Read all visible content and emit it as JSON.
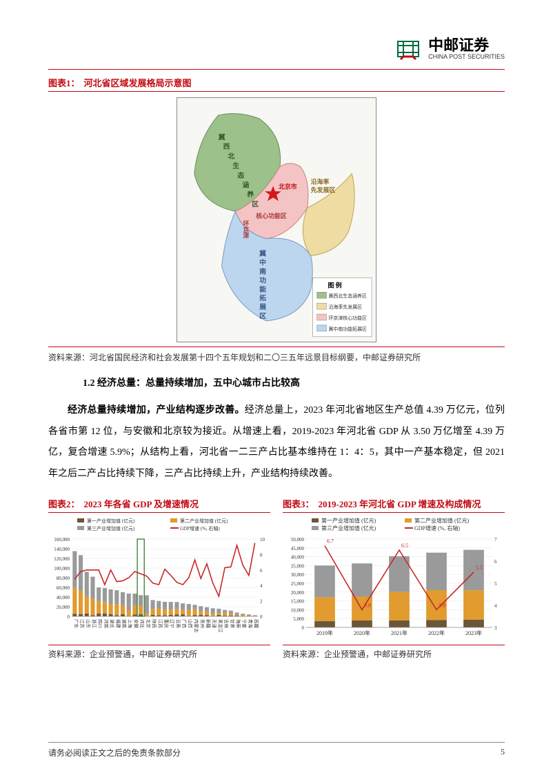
{
  "logo": {
    "cn": "中邮证券",
    "en": "CHINA POST SECURITIES"
  },
  "figure1": {
    "label": "图表1：",
    "title": "河北省区域发展格局示意图",
    "map": {
      "beijing_label": "北京市",
      "zones": [
        {
          "name": "冀西北生态涵养区",
          "fill": "#9dc18b",
          "label": "冀\n西\n北\n生\n态\n涵\n养\n区"
        },
        {
          "name": "沿海率先发展区",
          "fill": "#eedca3",
          "label": "沿海率先发展区"
        },
        {
          "name": "环京津核心功能区",
          "fill": "#f4c4c4",
          "label": "环京津核心功能区"
        },
        {
          "name": "冀中南功能拓展区",
          "fill": "#bcd6f0",
          "label": "冀中南功能拓展区"
        }
      ],
      "legend_title": "图    例",
      "legend_items": [
        {
          "color": "#9dc18b",
          "text": "冀西北生态涵养区"
        },
        {
          "color": "#eedca3",
          "text": "沿海率先发展区"
        },
        {
          "color": "#f4c4c4",
          "text": "环京津核心功能区"
        },
        {
          "color": "#bcd6f0",
          "text": "冀中南功能拓展区"
        }
      ]
    },
    "source": "资料来源：河北省国民经济和社会发展第十四个五年规划和二〇三五年远景目标纲要，中邮证券研究所"
  },
  "section_1_2": {
    "heading": "1.2 经济总量：总量持续增加，五中心城市占比较高",
    "para": "经济总量持续增加，产业结构逐步改善。经济总量上，2023 年河北省地区生产总值 4.39 万亿元，位列各省市第 12 位，与安徽和北京较为接近。从增速上看，2019-2023 年河北省 GDP 从 3.50 万亿增至 4.39 万亿，复合增速 5.9%；从结构上看，河北省一二三产占比基本维持在 1：4：5，其中一产基本稳定，但 2021 年之后二产占比持续下降，三产占比持续上升，产业结构持续改善。",
    "bold_lead": "经济总量持续增加，产业结构逐步改善。"
  },
  "chart2": {
    "label": "图表2：",
    "title": "2023 年各省 GDP 及增速情况",
    "type": "stacked-bar-line",
    "legend": [
      {
        "name": "第一产业增加值 (亿元)",
        "color": "#6b5638",
        "shape": "bar"
      },
      {
        "name": "第二产业增加值 (亿元)",
        "color": "#e19b2e",
        "shape": "bar"
      },
      {
        "name": "第三产业增加值 (亿元)",
        "color": "#9a9a9a",
        "shape": "bar"
      },
      {
        "name": "GDP增速 (%, 右轴)",
        "color": "#c62828",
        "shape": "line"
      }
    ],
    "y_left": {
      "min": 0,
      "max": 160000,
      "step": 20000
    },
    "y_right": {
      "min": 0,
      "max": 10,
      "step": 2
    },
    "label_fontsize": 7,
    "categories": [
      "广东",
      "江苏",
      "山东",
      "浙江",
      "四川",
      "河南",
      "湖北",
      "福建",
      "湖南",
      "上海",
      "安徽",
      "河北",
      "北京",
      "陕西",
      "江西",
      "重庆",
      "辽宁",
      "云南",
      "广西",
      "山西",
      "内蒙古",
      "贵州",
      "新疆",
      "天津",
      "黑龙江",
      "吉林",
      "甘肃",
      "海南",
      "宁夏",
      "青海",
      "西藏"
    ],
    "primary": [
      5000,
      4800,
      6000,
      2200,
      5800,
      5700,
      4800,
      2500,
      4500,
      100,
      3500,
      4400,
      110,
      2800,
      2400,
      2100,
      2900,
      4100,
      4100,
      1000,
      2700,
      2900,
      2600,
      200,
      2800,
      1700,
      1600,
      1600,
      420,
      400,
      220
    ],
    "secondary": [
      54000,
      48000,
      36000,
      34000,
      26000,
      24000,
      21000,
      23000,
      19000,
      12000,
      19000,
      17000,
      6000,
      12000,
      14000,
      12000,
      11000,
      11000,
      9000,
      12000,
      12000,
      7500,
      7500,
      6000,
      4000,
      6000,
      4000,
      1500,
      2400,
      1800,
      950
    ],
    "tertiary": [
      76000,
      74000,
      50000,
      46000,
      28000,
      29000,
      30000,
      28500,
      26500,
      35000,
      24500,
      22500,
      37500,
      19000,
      15500,
      16000,
      16000,
      14500,
      13800,
      12500,
      9200,
      10700,
      8800,
      10500,
      9000,
      5700,
      6300,
      4700,
      2700,
      1700,
      1200
    ],
    "gdp_growth": [
      4.8,
      5.8,
      6.0,
      6.0,
      6.0,
      4.1,
      6.0,
      4.5,
      4.6,
      5.0,
      5.8,
      5.5,
      5.2,
      4.3,
      4.1,
      6.1,
      5.3,
      4.4,
      4.1,
      5.0,
      7.3,
      4.9,
      6.8,
      4.3,
      2.6,
      6.3,
      6.4,
      9.2,
      6.6,
      5.3,
      9.5
    ],
    "highlight_province": "河北",
    "highlight_color": "#2e7d32",
    "background_color": "#ffffff",
    "grid_color": "#e6e6e6",
    "source": "资料来源：企业预警通，中邮证券研究所"
  },
  "chart3": {
    "label": "图表3：",
    "title": "2019-2023 年河北省 GDP 增速及构成情况",
    "type": "stacked-bar-line",
    "legend": [
      {
        "name": "第一产业增加值 (亿元)",
        "color": "#6b5638",
        "shape": "bar"
      },
      {
        "name": "第二产业增加值 (亿元)",
        "color": "#e19b2e",
        "shape": "bar"
      },
      {
        "name": "第三产业增加值 (亿元)",
        "color": "#9a9a9a",
        "shape": "bar"
      },
      {
        "name": "GDP增速 (%, 右轴)",
        "color": "#c62828",
        "shape": "line"
      }
    ],
    "y_left": {
      "min": 0,
      "max": 50000,
      "step": 5000
    },
    "y_right": {
      "min": 3,
      "max": 7,
      "step": 1
    },
    "label_fontsize": 8,
    "categories": [
      "2019年",
      "2020年",
      "2021年",
      "2022年",
      "2023年"
    ],
    "primary": [
      3500,
      3900,
      4000,
      4200,
      4400
    ],
    "secondary": [
      13600,
      13500,
      16000,
      16900,
      16600
    ],
    "tertiary": [
      17900,
      18800,
      20300,
      21200,
      22900
    ],
    "gdp_growth": [
      6.7,
      3.8,
      6.5,
      3.8,
      5.5
    ],
    "point_labels": [
      6.7,
      3.8,
      6.5,
      3.8,
      5.5
    ],
    "bar_width": 0.55,
    "background_color": "#ffffff",
    "grid_color": "#e6e6e6",
    "source": "资料来源：企业预警通，中邮证券研究所"
  },
  "footer": {
    "disclaimer": "请务必阅读正文之后的免责条款部分",
    "page": "5"
  }
}
